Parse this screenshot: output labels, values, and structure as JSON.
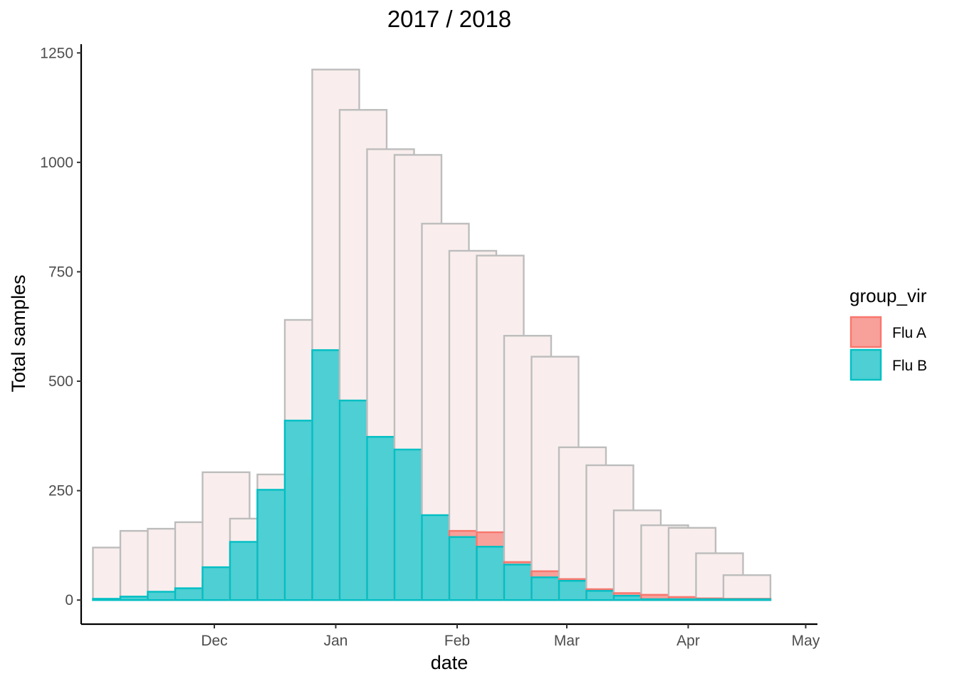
{
  "chart_data": {
    "type": "bar",
    "title": "2017 / 2018",
    "xlabel": "date",
    "ylabel": "Total samples",
    "ylim": [
      -55,
      1270
    ],
    "yticks": [
      0,
      250,
      500,
      750,
      1000,
      1250
    ],
    "x_range": [
      "2017-10-28",
      "2018-05-04"
    ],
    "xticks": [
      {
        "label": "Dec",
        "date": "2017-12-01"
      },
      {
        "label": "Jan",
        "date": "2018-01-01"
      },
      {
        "label": "Feb",
        "date": "2018-02-01"
      },
      {
        "label": "Mar",
        "date": "2018-03-01"
      },
      {
        "label": "Apr",
        "date": "2018-04-01"
      },
      {
        "label": "May",
        "date": "2018-05-01"
      }
    ],
    "bar_width_days": 4,
    "dates": [
      "2017-11-06",
      "2017-11-13",
      "2017-11-20",
      "2017-11-27",
      "2017-12-04",
      "2017-12-11",
      "2017-12-18",
      "2017-12-25",
      "2018-01-01",
      "2018-01-08",
      "2018-01-15",
      "2018-01-22",
      "2018-01-29",
      "2018-02-05",
      "2018-02-12",
      "2018-02-19",
      "2018-02-26",
      "2018-03-05",
      "2018-03-12",
      "2018-03-19",
      "2018-03-26",
      "2018-04-02",
      "2018-04-09",
      "2018-04-16",
      "2018-04-23"
    ],
    "total": [
      120,
      158,
      163,
      178,
      292,
      186,
      287,
      640,
      1212,
      1120,
      1030,
      1017,
      860,
      798,
      787,
      604,
      556,
      349,
      308,
      205,
      171,
      165,
      107,
      57,
      0
    ],
    "legend": {
      "title": "group_vir",
      "position": "right"
    },
    "series": [
      {
        "name": "Flu A",
        "color_fill": "#f8a09a",
        "color_line": "#f8766d",
        "values": [
          0,
          0,
          10,
          13,
          47,
          75,
          160,
          210,
          277,
          225,
          205,
          197,
          160,
          158,
          155,
          87,
          66,
          48,
          25,
          16,
          12,
          7,
          4,
          3,
          0
        ]
      },
      {
        "name": "Flu B",
        "color_fill": "#4dcfd3",
        "color_line": "#00bfc4",
        "values": [
          3,
          8,
          19,
          27,
          75,
          133,
          252,
          410,
          571,
          456,
          373,
          344,
          194,
          144,
          122,
          81,
          52,
          44,
          21,
          10,
          2,
          2,
          2,
          2,
          0
        ]
      }
    ],
    "total_color_fill": "#f9eeed",
    "total_color_line": "#bdbdbd",
    "grid": false
  }
}
